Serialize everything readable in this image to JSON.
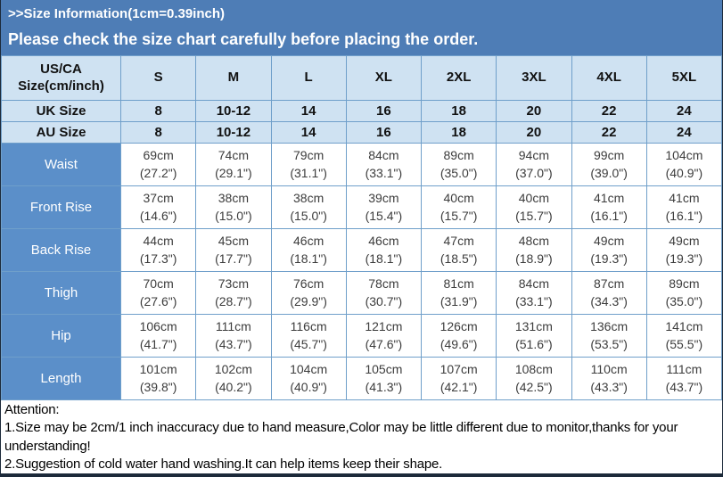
{
  "header": {
    "title": ">>Size Information(1cm=0.39inch)",
    "subtitle": "Please check the size chart carefully before placing the order."
  },
  "table": {
    "corner_header": "US/CA Size(cm/inch)",
    "size_headers": [
      "S",
      "M",
      "L",
      "XL",
      "2XL",
      "3XL",
      "4XL",
      "5XL"
    ],
    "size_rows": [
      {
        "label": "UK Size",
        "values": [
          "8",
          "10-12",
          "14",
          "16",
          "18",
          "20",
          "22",
          "24"
        ]
      },
      {
        "label": "AU Size",
        "values": [
          "8",
          "10-12",
          "14",
          "16",
          "18",
          "20",
          "22",
          "24"
        ]
      }
    ],
    "measurement_rows": [
      {
        "label": "Waist",
        "cm": [
          "69cm",
          "74cm",
          "79cm",
          "84cm",
          "89cm",
          "94cm",
          "99cm",
          "104cm"
        ],
        "inch": [
          "(27.2\")",
          "(29.1\")",
          "(31.1\")",
          "(33.1\")",
          "(35.0\")",
          "(37.0\")",
          "(39.0\")",
          "(40.9\")"
        ]
      },
      {
        "label": "Front Rise",
        "cm": [
          "37cm",
          "38cm",
          "38cm",
          "39cm",
          "40cm",
          "40cm",
          "41cm",
          "41cm"
        ],
        "inch": [
          "(14.6\")",
          "(15.0\")",
          "(15.0\")",
          "(15.4\")",
          "(15.7\")",
          "(15.7\")",
          "(16.1\")",
          "(16.1\")"
        ]
      },
      {
        "label": "Back Rise",
        "cm": [
          "44cm",
          "45cm",
          "46cm",
          "46cm",
          "47cm",
          "48cm",
          "49cm",
          "49cm"
        ],
        "inch": [
          "(17.3\")",
          "(17.7\")",
          "(18.1\")",
          "(18.1\")",
          "(18.5\")",
          "(18.9\")",
          "(19.3\")",
          "(19.3\")"
        ]
      },
      {
        "label": "Thigh",
        "cm": [
          "70cm",
          "73cm",
          "76cm",
          "78cm",
          "81cm",
          "84cm",
          "87cm",
          "89cm"
        ],
        "inch": [
          "(27.6\")",
          "(28.7\")",
          "(29.9\")",
          "(30.7\")",
          "(31.9\")",
          "(33.1\")",
          "(34.3\")",
          "(35.0\")"
        ]
      },
      {
        "label": "Hip",
        "cm": [
          "106cm",
          "111cm",
          "116cm",
          "121cm",
          "126cm",
          "131cm",
          "136cm",
          "141cm"
        ],
        "inch": [
          "(41.7\")",
          "(43.7\")",
          "(45.7\")",
          "(47.6\")",
          "(49.6\")",
          "(51.6\")",
          "(53.5\")",
          "(55.5\")"
        ]
      },
      {
        "label": "Length",
        "cm": [
          "101cm",
          "102cm",
          "104cm",
          "105cm",
          "107cm",
          "108cm",
          "110cm",
          "111cm"
        ],
        "inch": [
          "(39.8\")",
          "(40.2\")",
          "(40.9\")",
          "(41.3\")",
          "(42.1\")",
          "(42.5\")",
          "(43.3\")",
          "(43.7\")"
        ]
      }
    ]
  },
  "attention": {
    "title": "Attention:",
    "notes": [
      "1.Size may be 2cm/1 inch inaccuracy due to hand measure,Color may be little different due to monitor,thanks for your understanding!",
      "2.Suggestion of cold water hand washing.It can help items keep their shape."
    ]
  },
  "colors": {
    "banner_blue": "#4e7db6",
    "light_blue": "#cfe2f2",
    "label_blue": "#5b8fc9",
    "border_blue": "#6f9fca",
    "dark_border": "#1c2a3a"
  },
  "chart_data": {
    "type": "table",
    "title": ">>Size Information(1cm=0.39inch)",
    "subtitle": "Please check the size chart carefully before placing the order.",
    "columns": [
      "US/CA Size(cm/inch)",
      "S",
      "M",
      "L",
      "XL",
      "2XL",
      "3XL",
      "4XL",
      "5XL"
    ],
    "rows": [
      [
        "UK Size",
        "8",
        "10-12",
        "14",
        "16",
        "18",
        "20",
        "22",
        "24"
      ],
      [
        "AU Size",
        "8",
        "10-12",
        "14",
        "16",
        "18",
        "20",
        "22",
        "24"
      ],
      [
        "Waist",
        "69cm (27.2\")",
        "74cm (29.1\")",
        "79cm (31.1\")",
        "84cm (33.1\")",
        "89cm (35.0\")",
        "94cm (37.0\")",
        "99cm (39.0\")",
        "104cm (40.9\")"
      ],
      [
        "Front Rise",
        "37cm (14.6\")",
        "38cm (15.0\")",
        "38cm (15.0\")",
        "39cm (15.4\")",
        "40cm (15.7\")",
        "40cm (15.7\")",
        "41cm (16.1\")",
        "41cm (16.1\")"
      ],
      [
        "Back Rise",
        "44cm (17.3\")",
        "45cm (17.7\")",
        "46cm (18.1\")",
        "46cm (18.1\")",
        "47cm (18.5\")",
        "48cm (18.9\")",
        "49cm (19.3\")",
        "49cm (19.3\")"
      ],
      [
        "Thigh",
        "70cm (27.6\")",
        "73cm (28.7\")",
        "76cm (29.9\")",
        "78cm (30.7\")",
        "81cm (31.9\")",
        "84cm (33.1\")",
        "87cm (34.3\")",
        "89cm (35.0\")"
      ],
      [
        "Hip",
        "106cm (41.7\")",
        "111cm (43.7\")",
        "116cm (45.7\")",
        "121cm (47.6\")",
        "126cm (49.6\")",
        "131cm (51.6\")",
        "136cm (53.5\")",
        "141cm (55.5\")"
      ],
      [
        "Length",
        "101cm (39.8\")",
        "102cm (40.2\")",
        "104cm (40.9\")",
        "105cm (41.3\")",
        "107cm (42.1\")",
        "108cm (42.5\")",
        "110cm (43.3\")",
        "111cm (43.7\")"
      ]
    ]
  }
}
